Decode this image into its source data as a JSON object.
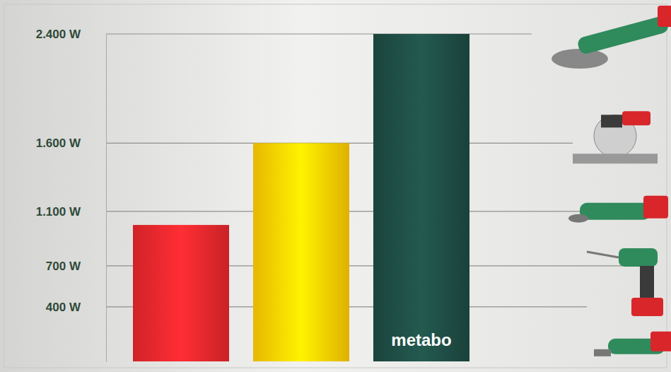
{
  "chart_data": {
    "type": "bar",
    "categories": [
      null,
      null,
      null
    ],
    "values": [
      1000,
      1600,
      2400
    ],
    "colors": [
      "#e3262b",
      "#fcc800",
      "#1d4a42"
    ],
    "ylim": [
      0,
      2400
    ],
    "yticks": [
      {
        "value": 400,
        "label": "400 W"
      },
      {
        "value": 700,
        "label": "700 W"
      },
      {
        "value": 1100,
        "label": "1.100 W"
      },
      {
        "value": 1600,
        "label": "1.600 W"
      },
      {
        "value": 2400,
        "label": "2.400 W"
      }
    ],
    "grid": true,
    "tick_labels": "y",
    "annotations": [
      {
        "text": "metabo",
        "category": 2
      }
    ]
  }
}
